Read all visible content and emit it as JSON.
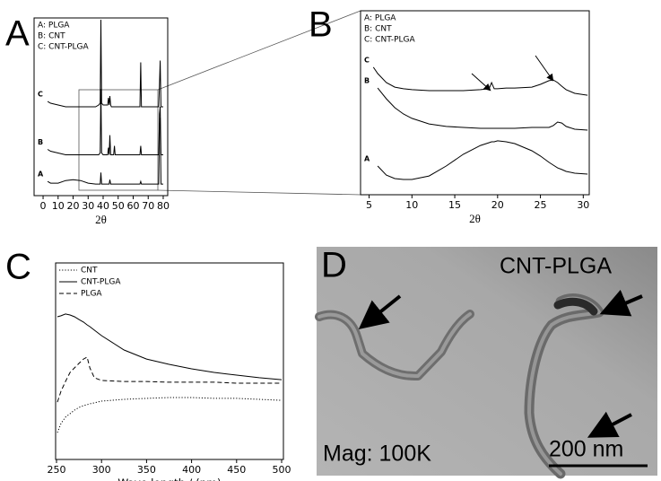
{
  "chart_data": [
    {
      "type": "line",
      "panel_label": "A",
      "xlabel": "2θ",
      "legend_entries": [
        "A: PLGA",
        "B: CNT",
        "C: CNT-PLGA"
      ],
      "x": [
        3,
        5,
        10,
        15,
        20,
        25,
        30,
        35,
        37,
        38,
        38.5,
        39,
        40,
        43,
        43.5,
        44,
        44.5,
        45,
        45.5,
        47,
        47.5,
        48,
        50,
        55,
        60,
        64.5,
        65,
        65.5,
        70,
        75,
        77,
        77.5,
        78,
        78.5,
        80
      ],
      "xlim": [
        -6,
        83
      ],
      "xticks": [
        0,
        10,
        20,
        30,
        40,
        50,
        60,
        70,
        80
      ],
      "ylim": [
        0,
        100
      ],
      "series": [
        {
          "name": "A",
          "color": "#000000",
          "line_style": "solid",
          "values": [
            8,
            7,
            7,
            8.5,
            9,
            8.5,
            7,
            6.5,
            6.5,
            6.5,
            13,
            6.5,
            6.5,
            6.5,
            6.5,
            6.5,
            9,
            6.5,
            6.5,
            6.5,
            6.5,
            6.5,
            6.5,
            6.5,
            6.5,
            6.5,
            8,
            6.5,
            6.5,
            6.5,
            6.5,
            40,
            44,
            6.5,
            6.5
          ]
        },
        {
          "name": "B",
          "color": "#000000",
          "line_style": "solid",
          "values": [
            26,
            25,
            24,
            23,
            23,
            23,
            23,
            23,
            23,
            24,
            60,
            24,
            23,
            23,
            27,
            23,
            34,
            23,
            23,
            23,
            28,
            23,
            23,
            23,
            23,
            23,
            28,
            23,
            23,
            23,
            23,
            46,
            50,
            23,
            23
          ]
        },
        {
          "name": "C",
          "color": "#000000",
          "line_style": "solid",
          "values": [
            53,
            52,
            51,
            50,
            50,
            50,
            50,
            50,
            51,
            52,
            99,
            52,
            51,
            51,
            55,
            51,
            56,
            51,
            50,
            50,
            50,
            50,
            50,
            50,
            50,
            50,
            75,
            50,
            50,
            50,
            50,
            62,
            76,
            50,
            50
          ]
        }
      ]
    },
    {
      "type": "line",
      "panel_label": "B",
      "xlabel": "2θ",
      "legend_entries": [
        "A: PLGA",
        "B: CNT",
        "C: CNT-PLGA"
      ],
      "x": [
        5.5,
        6,
        7,
        8,
        9,
        10,
        12,
        14,
        16,
        18,
        19,
        19.3,
        19.6,
        20,
        21,
        22,
        24,
        25,
        26,
        26.5,
        27,
        27.5,
        28,
        29,
        30.5
      ],
      "xlim": [
        4,
        30.7
      ],
      "xticks": [
        5,
        10,
        15,
        20,
        25,
        30
      ],
      "ylim": [
        0,
        100
      ],
      "series": [
        {
          "name": "A",
          "color": "#000000",
          "line_style": "solid",
          "values": [
            null,
            15.6,
            10.7,
            8.8,
            8.3,
            8.3,
            10.2,
            15.6,
            22.0,
            26.8,
            28.3,
            28.8,
            28.8,
            29.3,
            28.8,
            27.8,
            23.9,
            21.0,
            17.6,
            16.1,
            14.6,
            13.7,
            12.7,
            11.7,
            11.2
          ]
        },
        {
          "name": "B",
          "color": "#000000",
          "line_style": "solid",
          "values": [
            null,
            58.0,
            52.2,
            47.3,
            43.9,
            41.5,
            38.5,
            37.1,
            36.6,
            36.1,
            36.1,
            36.1,
            36.1,
            36.1,
            36.1,
            36.1,
            36.6,
            36.6,
            36.6,
            37.6,
            39.5,
            39.0,
            37.1,
            35.6,
            35.1
          ]
        },
        {
          "name": "C",
          "color": "#000000",
          "line_style": "solid",
          "values": [
            69.3,
            65.9,
            61.0,
            58.5,
            57.6,
            57.1,
            56.6,
            56.6,
            56.6,
            57.1,
            57.6,
            61.0,
            57.6,
            57.6,
            58.0,
            58.0,
            58.5,
            60.0,
            62.0,
            62.4,
            61.0,
            59.0,
            57.1,
            55.1,
            54.1
          ]
        }
      ]
    },
    {
      "type": "line",
      "panel_label": "C",
      "xlabel": "Wave length / (nm)",
      "legend": "upper left",
      "x": [
        251,
        255,
        260,
        265,
        270,
        275,
        280,
        284,
        287,
        292,
        300,
        325,
        350,
        375,
        400,
        425,
        450,
        475,
        500
      ],
      "xlim": [
        249,
        502
      ],
      "xticks": [
        250,
        300,
        350,
        400,
        450,
        500
      ],
      "ylim": [
        0,
        100
      ],
      "series": [
        {
          "name": "CNT",
          "color": "#000000",
          "line_style": "dotted",
          "values": [
            13.7,
            18.3,
            21.5,
            23.3,
            25.1,
            26.5,
            27.4,
            27.9,
            28.3,
            28.8,
            29.7,
            30.6,
            31.1,
            31.5,
            31.5,
            31.1,
            31.1,
            30.6,
            30.1
          ]
        },
        {
          "name": "CNT-PLGA",
          "color": "#000000",
          "line_style": "solid",
          "values": [
            72.6,
            73.1,
            74.0,
            73.5,
            72.6,
            71.2,
            69.9,
            68.5,
            67.6,
            65.8,
            63.0,
            55.7,
            51.1,
            48.4,
            46.1,
            44.3,
            42.9,
            41.6,
            40.6
          ]
        },
        {
          "name": "PLGA",
          "color": "#000000",
          "line_style": "dashed",
          "values": [
            29.2,
            34.7,
            39.7,
            44.3,
            46.6,
            48.9,
            51.1,
            52.1,
            46.6,
            41.6,
            40.2,
            39.7,
            39.7,
            39.3,
            39.3,
            39.3,
            38.8,
            38.8,
            38.8
          ]
        }
      ]
    }
  ],
  "image": {
    "panel_label": "D",
    "title": "CNT-PLGA",
    "magnification": "Mag: 100K",
    "scale_bar": "200 nm"
  }
}
